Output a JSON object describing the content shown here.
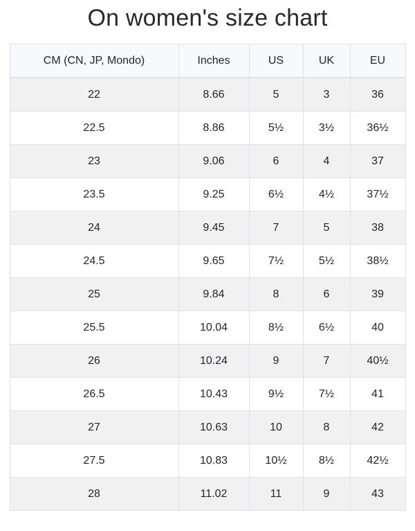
{
  "page": {
    "title": "On women's size chart"
  },
  "chart_data": {
    "type": "table",
    "title": "On women's size chart",
    "columns": [
      "CM (CN, JP, Mondo)",
      "Inches",
      "US",
      "UK",
      "EU"
    ],
    "rows": [
      [
        "22",
        "8.66",
        "5",
        "3",
        "36"
      ],
      [
        "22.5",
        "8.86",
        "5½",
        "3½",
        "36½"
      ],
      [
        "23",
        "9.06",
        "6",
        "4",
        "37"
      ],
      [
        "23.5",
        "9.25",
        "6½",
        "4½",
        "37½"
      ],
      [
        "24",
        "9.45",
        "7",
        "5",
        "38"
      ],
      [
        "24.5",
        "9.65",
        "7½",
        "5½",
        "38½"
      ],
      [
        "25",
        "9.84",
        "8",
        "6",
        "39"
      ],
      [
        "25.5",
        "10.04",
        "8½",
        "6½",
        "40"
      ],
      [
        "26",
        "10.24",
        "9",
        "7",
        "40½"
      ],
      [
        "26.5",
        "10.43",
        "9½",
        "7½",
        "41"
      ],
      [
        "27",
        "10.63",
        "10",
        "8",
        "42"
      ],
      [
        "27.5",
        "10.83",
        "10½",
        "8½",
        "42½"
      ],
      [
        "28",
        "11.02",
        "11",
        "9",
        "43"
      ]
    ],
    "layout": {
      "striped_rows": "odd",
      "grid": true,
      "header_position": "top"
    }
  },
  "colors": {
    "header_bg": "#f8f9fa",
    "stripe_bg": "#f1f1f2",
    "row_bg": "#ffffff",
    "border": "#dee2e6",
    "text": "#212529",
    "title_text": "#24292e"
  }
}
